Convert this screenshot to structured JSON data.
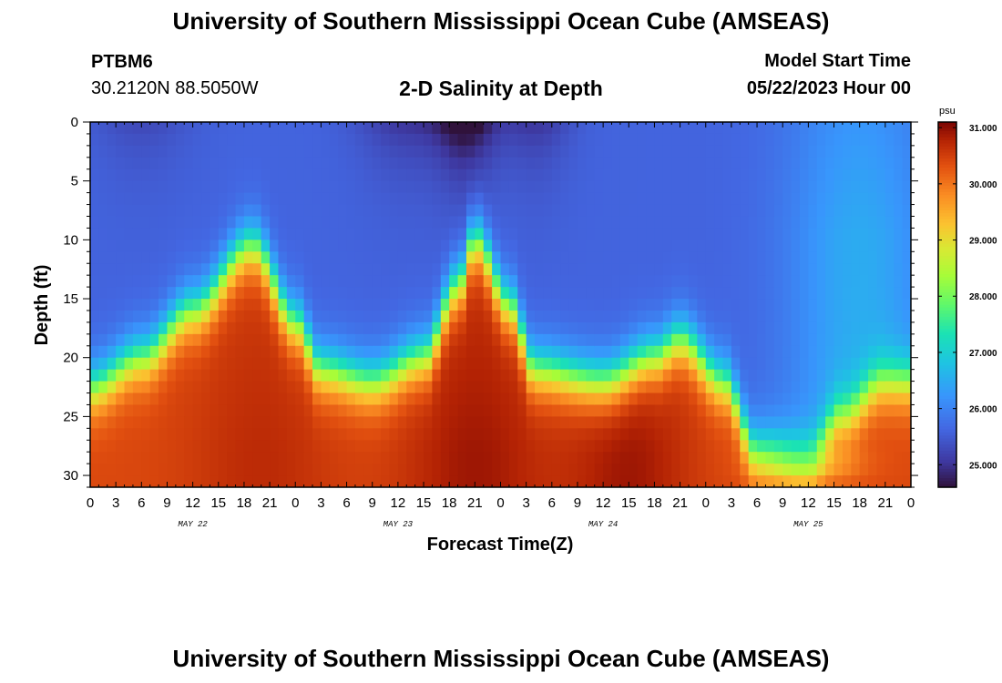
{
  "header": {
    "title": "University of Southern Mississippi Ocean Cube (AMSEAS)",
    "station_id": "PTBM6",
    "coordinates": "30.2120N  88.5050W",
    "plot_title": "2-D Salinity at Depth",
    "model_start_label": "Model Start Time",
    "model_start_value": "05/22/2023 Hour 00"
  },
  "footer": {
    "title": "University of Southern Mississippi Ocean Cube (AMSEAS)"
  },
  "chart_data": {
    "type": "heatmap",
    "title": "2-D Salinity at Depth",
    "xlabel": "Forecast Time(Z)",
    "ylabel": "Depth (ft)",
    "xlim": [
      0,
      96
    ],
    "ylim": [
      0,
      31
    ],
    "x_ticks": [
      0,
      3,
      6,
      9,
      12,
      15,
      18,
      21,
      24,
      27,
      30,
      33,
      36,
      39,
      42,
      45,
      48,
      51,
      54,
      57,
      60,
      63,
      66,
      69,
      72,
      75,
      78,
      81,
      84,
      87,
      90,
      93,
      96
    ],
    "x_tick_labels": [
      "0",
      "3",
      "6",
      "9",
      "12",
      "15",
      "18",
      "21",
      "0",
      "3",
      "6",
      "9",
      "12",
      "15",
      "18",
      "21",
      "0",
      "3",
      "6",
      "9",
      "12",
      "15",
      "18",
      "21",
      "0",
      "3",
      "6",
      "9",
      "12",
      "15",
      "18",
      "21",
      "0"
    ],
    "day_labels": [
      {
        "label": "MAY 22",
        "hour": 12
      },
      {
        "label": "MAY 23",
        "hour": 36
      },
      {
        "label": "MAY 24",
        "hour": 60
      },
      {
        "label": "MAY 25",
        "hour": 84
      }
    ],
    "y_ticks": [
      0,
      5,
      10,
      15,
      20,
      25,
      30
    ],
    "y_tick_labels": [
      "0",
      "5",
      "10",
      "15",
      "20",
      "25",
      "30"
    ],
    "colorbar": {
      "units": "psu",
      "min": 24.6,
      "max": 31.1,
      "ticks": [
        25,
        26,
        27,
        28,
        29,
        30,
        31
      ],
      "tick_labels": [
        "25.000",
        "26.000",
        "27.000",
        "28.000",
        "29.000",
        "30.000",
        "31.000"
      ]
    },
    "halocline_depth_by_hour": [
      {
        "hour": 0,
        "depth": 22.5
      },
      {
        "hour": 6,
        "depth": 20
      },
      {
        "hour": 12,
        "depth": 16
      },
      {
        "hour": 19,
        "depth": 10.5
      },
      {
        "hour": 24,
        "depth": 17
      },
      {
        "hour": 27,
        "depth": 21
      },
      {
        "hour": 33,
        "depth": 22
      },
      {
        "hour": 39,
        "depth": 20
      },
      {
        "hour": 43,
        "depth": 14
      },
      {
        "hour": 45,
        "depth": 10
      },
      {
        "hour": 49,
        "depth": 15.5
      },
      {
        "hour": 52,
        "depth": 21
      },
      {
        "hour": 60,
        "depth": 22
      },
      {
        "hour": 66,
        "depth": 20
      },
      {
        "hour": 69,
        "depth": 18.5
      },
      {
        "hour": 74,
        "depth": 22
      },
      {
        "hour": 78,
        "depth": 28
      },
      {
        "hour": 84,
        "depth": 28.5
      },
      {
        "hour": 88,
        "depth": 25
      },
      {
        "hour": 93,
        "depth": 22
      },
      {
        "hour": 96,
        "depth": 22
      }
    ],
    "surface_salinity_psu": 25.6,
    "bottom_salinity_psu": 30.4,
    "notes": "Low-salinity surface layer (~25-26 psu, minimum near 24.6 psu at 0-5 ft around hour 42-48) over a high-salinity bottom layer (~30-31 psu); tidal intrusions of saline water peak near hours 19 and 45."
  }
}
